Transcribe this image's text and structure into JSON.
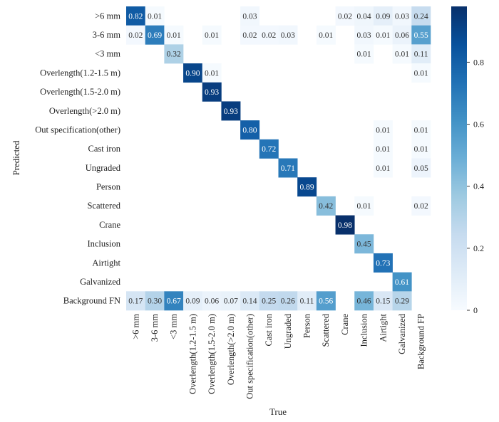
{
  "chart_data": {
    "type": "heatmap",
    "title": "",
    "xlabel": "True",
    "ylabel": "Predicted",
    "row_labels": [
      ">6 mm",
      "3-6 mm",
      "<3 mm",
      "Overlength(1.2-1.5 m)",
      "Overlength(1.5-2.0 m)",
      "Overlength(>2.0 m)",
      "Out specification(other)",
      "Cast iron",
      "Ungraded",
      "Person",
      "Scattered",
      "Crane",
      "Inclusion",
      "Airtight",
      "Galvanized",
      "Background FN"
    ],
    "col_labels": [
      ">6 mm",
      "3-6 mm",
      "<3 mm",
      "Overlength(1.2-1.5 m)",
      "Overlength(1.5-2.0 m)",
      "Overlength(>2.0 m)",
      "Out specification(other)",
      "Cast iron",
      "Ungraded",
      "Person",
      "Scattered",
      "Crane",
      "Inclusion",
      "Airtight",
      "Galvanized",
      "Background FP"
    ],
    "values": [
      [
        0.82,
        0.01,
        null,
        null,
        null,
        null,
        0.03,
        null,
        null,
        null,
        null,
        0.02,
        0.04,
        0.09,
        0.03,
        0.24
      ],
      [
        0.02,
        0.69,
        0.01,
        null,
        0.01,
        null,
        0.02,
        0.02,
        0.03,
        null,
        0.01,
        null,
        0.03,
        0.01,
        0.06,
        0.55
      ],
      [
        null,
        null,
        0.32,
        null,
        null,
        null,
        null,
        null,
        null,
        null,
        null,
        null,
        0.01,
        null,
        0.01,
        0.11
      ],
      [
        null,
        null,
        null,
        0.9,
        0.01,
        null,
        null,
        null,
        null,
        null,
        null,
        null,
        null,
        null,
        null,
        0.01
      ],
      [
        null,
        null,
        null,
        null,
        0.93,
        null,
        null,
        null,
        null,
        null,
        null,
        null,
        null,
        null,
        null,
        null
      ],
      [
        null,
        null,
        null,
        null,
        null,
        0.93,
        null,
        null,
        null,
        null,
        null,
        null,
        null,
        null,
        null,
        null
      ],
      [
        null,
        null,
        null,
        null,
        null,
        null,
        0.8,
        null,
        null,
        null,
        null,
        null,
        null,
        0.01,
        null,
        0.01
      ],
      [
        null,
        null,
        null,
        null,
        null,
        null,
        null,
        0.72,
        null,
        null,
        null,
        null,
        null,
        0.01,
        null,
        0.01
      ],
      [
        null,
        null,
        null,
        null,
        null,
        null,
        null,
        null,
        0.71,
        null,
        null,
        null,
        null,
        0.01,
        null,
        0.05
      ],
      [
        null,
        null,
        null,
        null,
        null,
        null,
        null,
        null,
        null,
        0.89,
        null,
        null,
        null,
        null,
        null,
        null
      ],
      [
        null,
        null,
        null,
        null,
        null,
        null,
        null,
        null,
        null,
        null,
        0.42,
        null,
        0.01,
        null,
        null,
        0.02
      ],
      [
        null,
        null,
        null,
        null,
        null,
        null,
        null,
        null,
        null,
        null,
        null,
        0.98,
        null,
        null,
        null,
        null
      ],
      [
        null,
        null,
        null,
        null,
        null,
        null,
        null,
        null,
        null,
        null,
        null,
        null,
        0.45,
        null,
        null,
        null
      ],
      [
        null,
        null,
        null,
        null,
        null,
        null,
        null,
        null,
        null,
        null,
        null,
        null,
        null,
        0.73,
        null,
        null
      ],
      [
        null,
        null,
        null,
        null,
        null,
        null,
        null,
        null,
        null,
        null,
        null,
        null,
        null,
        null,
        0.61,
        null
      ],
      [
        0.17,
        0.3,
        0.67,
        0.09,
        0.06,
        0.07,
        0.14,
        0.25,
        0.26,
        0.11,
        0.56,
        null,
        0.46,
        0.15,
        0.29,
        null
      ]
    ],
    "colormap": "Blues",
    "vmin": 0,
    "vmax": 0.98,
    "colorbar_ticks": [
      "0",
      "0.2",
      "0.4",
      "0.6",
      "0.8"
    ],
    "colorbar_tick_values": [
      0,
      0.2,
      0.4,
      0.6,
      0.8
    ]
  }
}
